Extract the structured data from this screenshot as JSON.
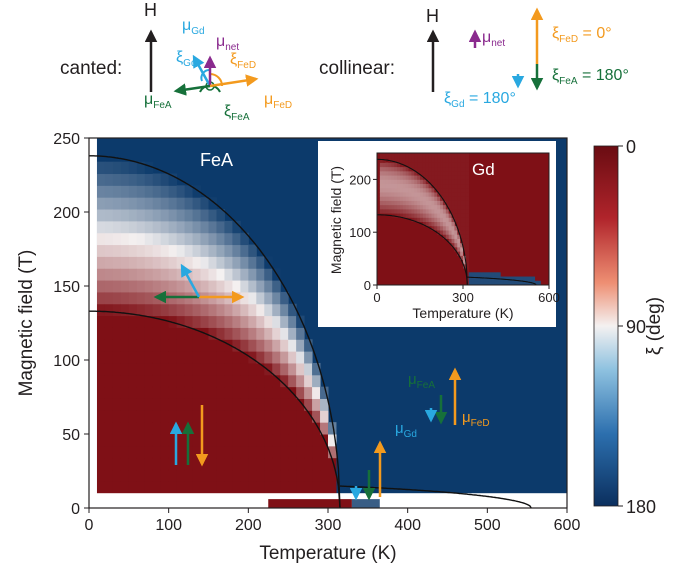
{
  "colors": {
    "red": "#7f1016",
    "white": "#f4f1f1",
    "blue": "#0c3a6b",
    "mu_gd": "#29a8e0",
    "mu_fea": "#16703a",
    "mu_fed": "#f39a1e",
    "mu_net": "#8a2a8e",
    "field_arrow": "#231f20"
  },
  "schematic": {
    "h_label": "H",
    "canted_label": "canted:",
    "collinear_label": "collinear:",
    "mu_gd": {
      "base": "μ",
      "sub": "Gd"
    },
    "mu_net": {
      "base": "μ",
      "sub": "net"
    },
    "mu_fea": {
      "base": "μ",
      "sub": "FeA"
    },
    "mu_fed": {
      "base": "μ",
      "sub": "FeD"
    },
    "xi_gd": {
      "base": "ξ",
      "sub": "Gd"
    },
    "xi_fed": {
      "base": "ξ",
      "sub": "FeD"
    },
    "xi_fea": {
      "base": "ξ",
      "sub": "FeA"
    },
    "collinear_fed": {
      "base": "ξ",
      "sub": "FeD",
      "value": " = 0°"
    },
    "collinear_fea": {
      "base": "ξ",
      "sub": "FeA",
      "value": " = 180°"
    },
    "collinear_gd": {
      "base": "ξ",
      "sub": "Gd",
      "value": " = 180°"
    }
  },
  "chart_data": [
    {
      "type": "heatmap",
      "panel": "FeA",
      "title": "FeA",
      "xlabel": "Temperature (K)",
      "ylabel": "Magnetic field (T)",
      "xlim": [
        0,
        600
      ],
      "ylim": [
        0,
        250
      ],
      "xticks": [
        0,
        100,
        200,
        300,
        400,
        500,
        600
      ],
      "yticks": [
        0,
        50,
        100,
        150,
        200,
        250
      ],
      "colorbar": {
        "label": "ξ (deg)",
        "range": [
          0,
          180
        ],
        "ticks": [
          0,
          90,
          180
        ]
      },
      "boundaries": {
        "canted_upper": {
          "H0": 238,
          "Tc": 315
        },
        "canted_lower": {
          "H0": 133,
          "Tc": 315
        },
        "collinear_line": {
          "H0": 18,
          "T_start": 315,
          "Tc": 555
        }
      },
      "annotations": {
        "mu_gd": {
          "base": "μ",
          "sub": "Gd"
        },
        "mu_fea": {
          "base": "μ",
          "sub": "FeA"
        },
        "mu_fed": {
          "base": "μ",
          "sub": "FeD"
        }
      }
    },
    {
      "type": "heatmap",
      "panel": "Gd",
      "title": "Gd",
      "xlabel": "Temperature (K)",
      "ylabel": "Magnetic field (T)",
      "xlim": [
        0,
        600
      ],
      "ylim": [
        0,
        250
      ],
      "xticks": [
        0,
        300,
        600
      ],
      "yticks": [
        0,
        100,
        200
      ]
    }
  ]
}
